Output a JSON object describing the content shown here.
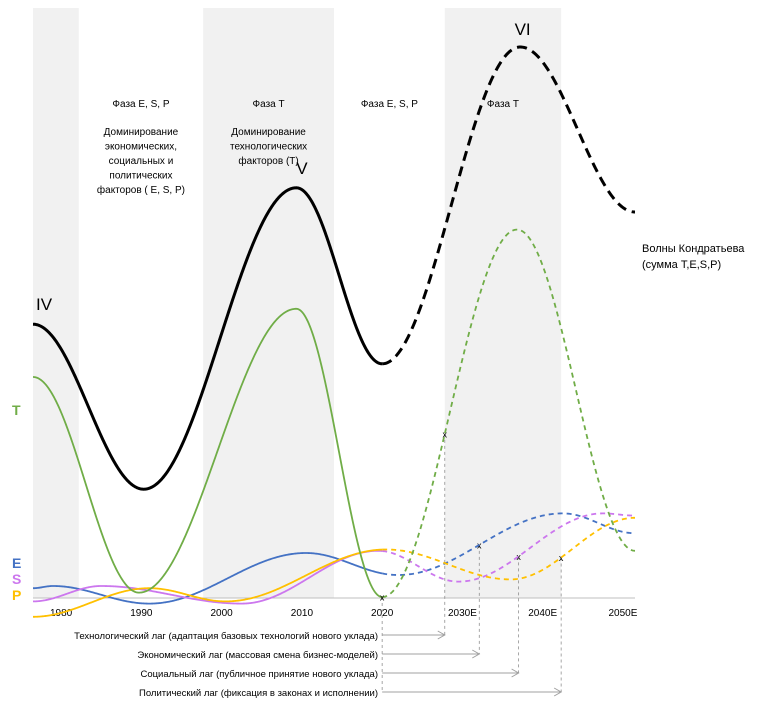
{
  "chart_data": {
    "type": "line",
    "x_ticks": [
      "1980",
      "1990",
      "2000",
      "2010",
      "2020",
      "2030E",
      "2040E",
      "2050E"
    ],
    "xlim": [
      1976.5,
      2051.5
    ],
    "phases": [
      {
        "label": "",
        "from": 1976.5,
        "to": 1982.2,
        "shaded": true,
        "description": ""
      },
      {
        "label": "Фаза E, S, P",
        "from": 1982.2,
        "to": 1997.7,
        "shaded": false,
        "description": [
          "Доминирование",
          "экономических,",
          "социальных и",
          "политических",
          "факторов ( E, S, P)"
        ]
      },
      {
        "label": "Фаза Т",
        "from": 1997.7,
        "to": 2014.0,
        "shaded": true,
        "description": [
          "Доминирование",
          "технологических",
          "факторов (Т)"
        ]
      },
      {
        "label": "Фаза E, S, P",
        "from": 2014.0,
        "to": 2027.8,
        "shaded": false,
        "description": ""
      },
      {
        "label": "Фаза Т",
        "from": 2027.8,
        "to": 2042.3,
        "shaded": true,
        "description": ""
      },
      {
        "label": "",
        "from": 2042.3,
        "to": 2051.5,
        "shaded": false,
        "description": ""
      }
    ],
    "series": [
      {
        "key": "kondratiev",
        "name": "Волны Кондратьева\n(сумма Т,E,S,P)",
        "color": "#000000",
        "solid_until": 2020,
        "x": [
          1976.5,
          1990.3,
          2009.3,
          2020,
          2037.2,
          2051.5
        ],
        "y": [
          0.52,
          0.145,
          0.83,
          0.43,
          1.15,
          0.775
        ]
      },
      {
        "key": "T",
        "name": "T",
        "color": "#70ad47",
        "solid_until": 2020,
        "x": [
          1976.5,
          1989.7,
          2009.3,
          2020,
          2036.8,
          2051.5
        ],
        "y": [
          0.4,
          -0.09,
          0.555,
          -0.1,
          0.735,
          0.005
        ]
      },
      {
        "key": "E",
        "name": "E",
        "color": "#4472c4",
        "solid_until": 2020,
        "x": [
          1976.5,
          1979.0,
          1991.0,
          2010.5,
          2022.0,
          2042.5,
          2051.5
        ],
        "y": [
          -0.08,
          -0.075,
          -0.115,
          0.0,
          -0.05,
          0.09,
          0.045
        ]
      },
      {
        "key": "S",
        "name": "S",
        "color": "#cc77ee",
        "solid_until": 2020,
        "x": [
          1976.5,
          1985.0,
          2002.5,
          2019.5,
          2029.5,
          2047.5,
          2051.5
        ],
        "y": [
          -0.11,
          -0.075,
          -0.115,
          0.005,
          -0.065,
          0.09,
          0.085
        ]
      },
      {
        "key": "P",
        "name": "P",
        "color": "#ffc000",
        "solid_until": 2020,
        "x": [
          1976.5,
          1991.0,
          2000.5,
          2020.5,
          2036.0,
          2051.5
        ],
        "y": [
          -0.145,
          -0.08,
          -0.11,
          0.008,
          -0.06,
          0.08
        ]
      }
    ],
    "cycle_labels": [
      {
        "text": "IV",
        "x": 1977.0,
        "y": 0.52
      },
      {
        "text": "V",
        "x": 2010.0,
        "y": 0.83
      },
      {
        "text": "VI",
        "x": 2037.5,
        "y": 1.15
      }
    ],
    "lags": [
      {
        "label": "Технологический лаг (адаптация базовых технологий нового уклада)",
        "start": 2020,
        "end": 2027.8,
        "curve": "T"
      },
      {
        "label": "Экономический лаг (массовая смена бизнес-моделей)",
        "start": 2020,
        "end": 2032.1,
        "curve": "E"
      },
      {
        "label": "Социальный лаг (публичное принятие нового уклада)",
        "start": 2020,
        "end": 2037.0,
        "curve": "S"
      },
      {
        "label": "Политический лаг (фиксация в законах и исполнении)",
        "start": 2020,
        "end": 2042.3,
        "curve": "P"
      }
    ]
  }
}
